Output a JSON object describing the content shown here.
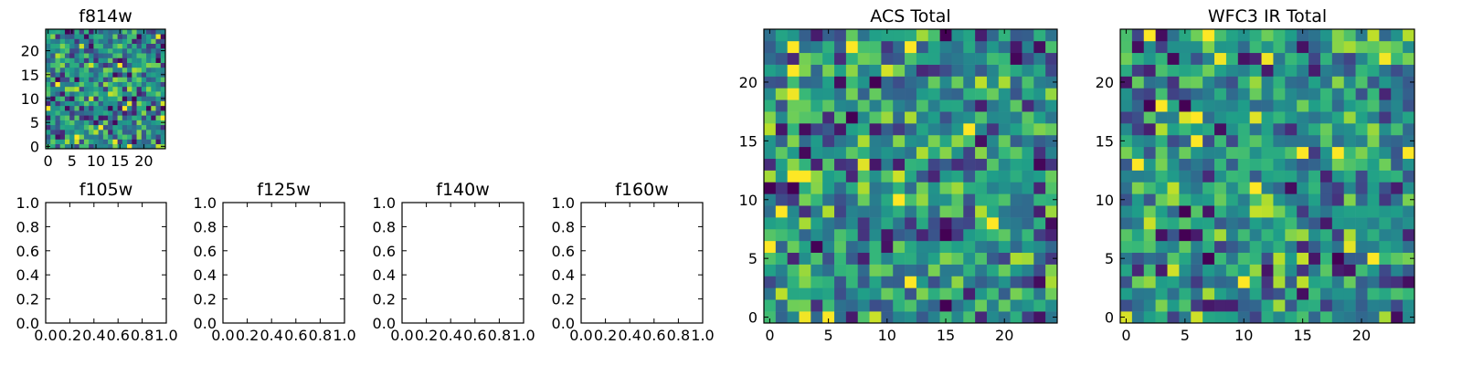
{
  "chart_data": [
    {
      "type": "heatmap",
      "title": "f814w",
      "grid_size": 25,
      "xlim": [
        -0.5,
        24.5
      ],
      "ylim": [
        -0.5,
        24.5
      ],
      "xticks": [
        0,
        5,
        10,
        15,
        20
      ],
      "yticks": [
        0,
        5,
        10,
        15,
        20
      ],
      "xtick_labels": [
        "0",
        "5",
        "10",
        "15",
        "20"
      ],
      "ytick_labels": [
        "0",
        "5",
        "10",
        "15",
        "20"
      ],
      "colormap": "viridis",
      "value_range": [
        0,
        1
      ],
      "values_seed": 814
    },
    {
      "type": "line",
      "title": "f105w",
      "series": [],
      "xlim": [
        0.0,
        1.0
      ],
      "ylim": [
        0.0,
        1.0
      ],
      "xtick_labels": [
        "0.0",
        "0.2",
        "0.4",
        "0.6",
        "0.8",
        "1.0"
      ],
      "ytick_labels": [
        "0.0",
        "0.2",
        "0.4",
        "0.6",
        "0.8",
        "1.0"
      ]
    },
    {
      "type": "line",
      "title": "f125w",
      "series": [],
      "xlim": [
        0.0,
        1.0
      ],
      "ylim": [
        0.0,
        1.0
      ],
      "xtick_labels": [
        "0.0",
        "0.2",
        "0.4",
        "0.6",
        "0.8",
        "1.0"
      ],
      "ytick_labels": [
        "0.0",
        "0.2",
        "0.4",
        "0.6",
        "0.8",
        "1.0"
      ]
    },
    {
      "type": "line",
      "title": "f140w",
      "series": [],
      "xlim": [
        0.0,
        1.0
      ],
      "ylim": [
        0.0,
        1.0
      ],
      "xtick_labels": [
        "0.0",
        "0.2",
        "0.4",
        "0.6",
        "0.8",
        "1.0"
      ],
      "ytick_labels": [
        "0.0",
        "0.2",
        "0.4",
        "0.6",
        "0.8",
        "1.0"
      ]
    },
    {
      "type": "line",
      "title": "f160w",
      "series": [],
      "xlim": [
        0.0,
        1.0
      ],
      "ylim": [
        0.0,
        1.0
      ],
      "xtick_labels": [
        "0.0",
        "0.2",
        "0.4",
        "0.6",
        "0.8",
        "1.0"
      ],
      "ytick_labels": [
        "0.0",
        "0.2",
        "0.4",
        "0.6",
        "0.8",
        "1.0"
      ]
    },
    {
      "type": "heatmap",
      "title": "ACS Total",
      "grid_size": 25,
      "xlim": [
        -0.5,
        24.5
      ],
      "ylim": [
        -0.5,
        24.5
      ],
      "xticks": [
        0,
        5,
        10,
        15,
        20
      ],
      "yticks": [
        0,
        5,
        10,
        15,
        20
      ],
      "xtick_labels": [
        "0",
        "5",
        "10",
        "15",
        "20"
      ],
      "ytick_labels": [
        "0",
        "5",
        "10",
        "15",
        "20"
      ],
      "colormap": "viridis",
      "value_range": [
        0,
        1
      ],
      "values_seed": 1001
    },
    {
      "type": "heatmap",
      "title": "WFC3 IR Total",
      "grid_size": 25,
      "xlim": [
        -0.5,
        24.5
      ],
      "ylim": [
        -0.5,
        24.5
      ],
      "xticks": [
        0,
        5,
        10,
        15,
        20
      ],
      "yticks": [
        0,
        5,
        10,
        15,
        20
      ],
      "xtick_labels": [
        "0",
        "5",
        "10",
        "15",
        "20"
      ],
      "ytick_labels": [
        "0",
        "5",
        "10",
        "15",
        "20"
      ],
      "colormap": "viridis",
      "value_range": [
        0,
        1
      ],
      "values_seed": 2002
    }
  ]
}
